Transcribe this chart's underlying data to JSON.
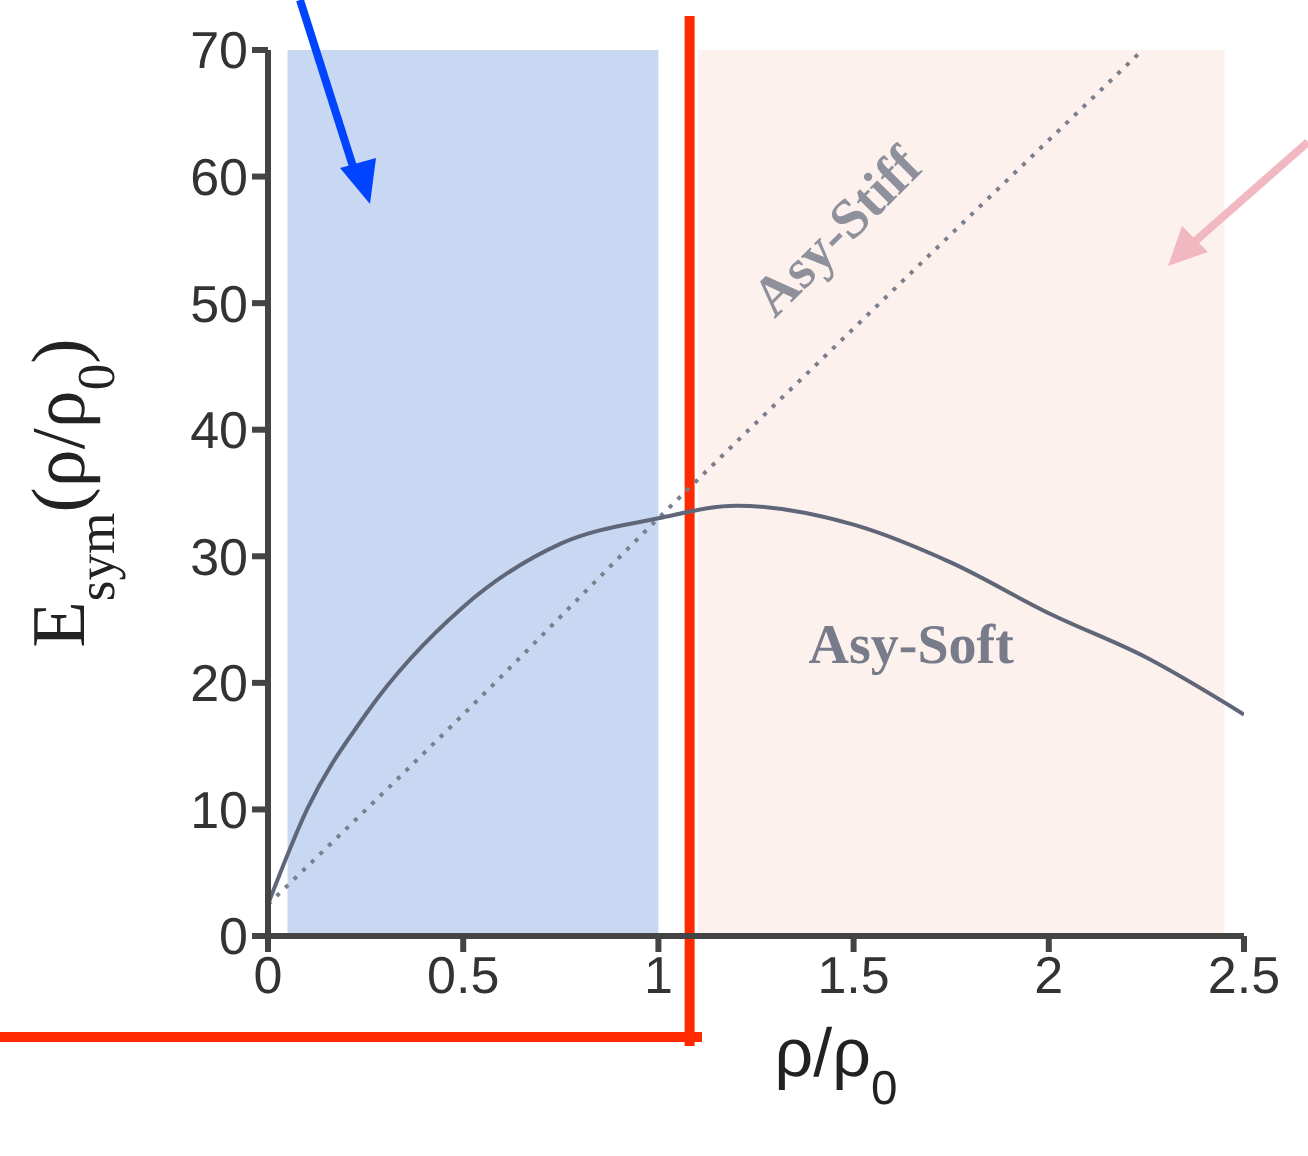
{
  "chart_data": {
    "type": "line",
    "xlabel": "ρ/ρ$_{0}$",
    "ylabel": "E$_{sym}$(ρ/ρ$_{0}$)",
    "xlim": [
      0,
      2.5
    ],
    "ylim": [
      0,
      70
    ],
    "xticks": [
      0,
      0.5,
      1,
      1.5,
      2,
      2.5
    ],
    "yticks": [
      0,
      10,
      20,
      30,
      40,
      50,
      60,
      70
    ],
    "grid": false,
    "legend": false,
    "marker": "none",
    "series": [
      {
        "name": "Asy-Stiff",
        "color": "#7a7f8c",
        "line_style": "dotted",
        "x": [
          0,
          0.5,
          1,
          1.5,
          2.24
        ],
        "values": [
          2.5,
          17.5,
          33,
          48,
          70
        ]
      },
      {
        "name": "Asy-Soft",
        "color": "#5f6678",
        "line_style": "solid",
        "x": [
          0,
          0.1,
          0.25,
          0.5,
          0.75,
          1,
          1.2,
          1.5,
          1.75,
          2,
          2.25,
          2.5
        ],
        "values": [
          2.5,
          10,
          17.5,
          26,
          31,
          33,
          34,
          32.5,
          29.5,
          25.5,
          22,
          17.5
        ]
      }
    ],
    "ref_lines": [
      {
        "axis": "x",
        "value": 1.08,
        "color": "#ff2a00"
      }
    ],
    "bands": [
      {
        "axis": "x",
        "from": 0.05,
        "to": 1,
        "color": "#c9d8f2"
      },
      {
        "axis": "x",
        "from": 1.1,
        "to": 2.45,
        "color": "#fdf1ee"
      }
    ]
  }
}
